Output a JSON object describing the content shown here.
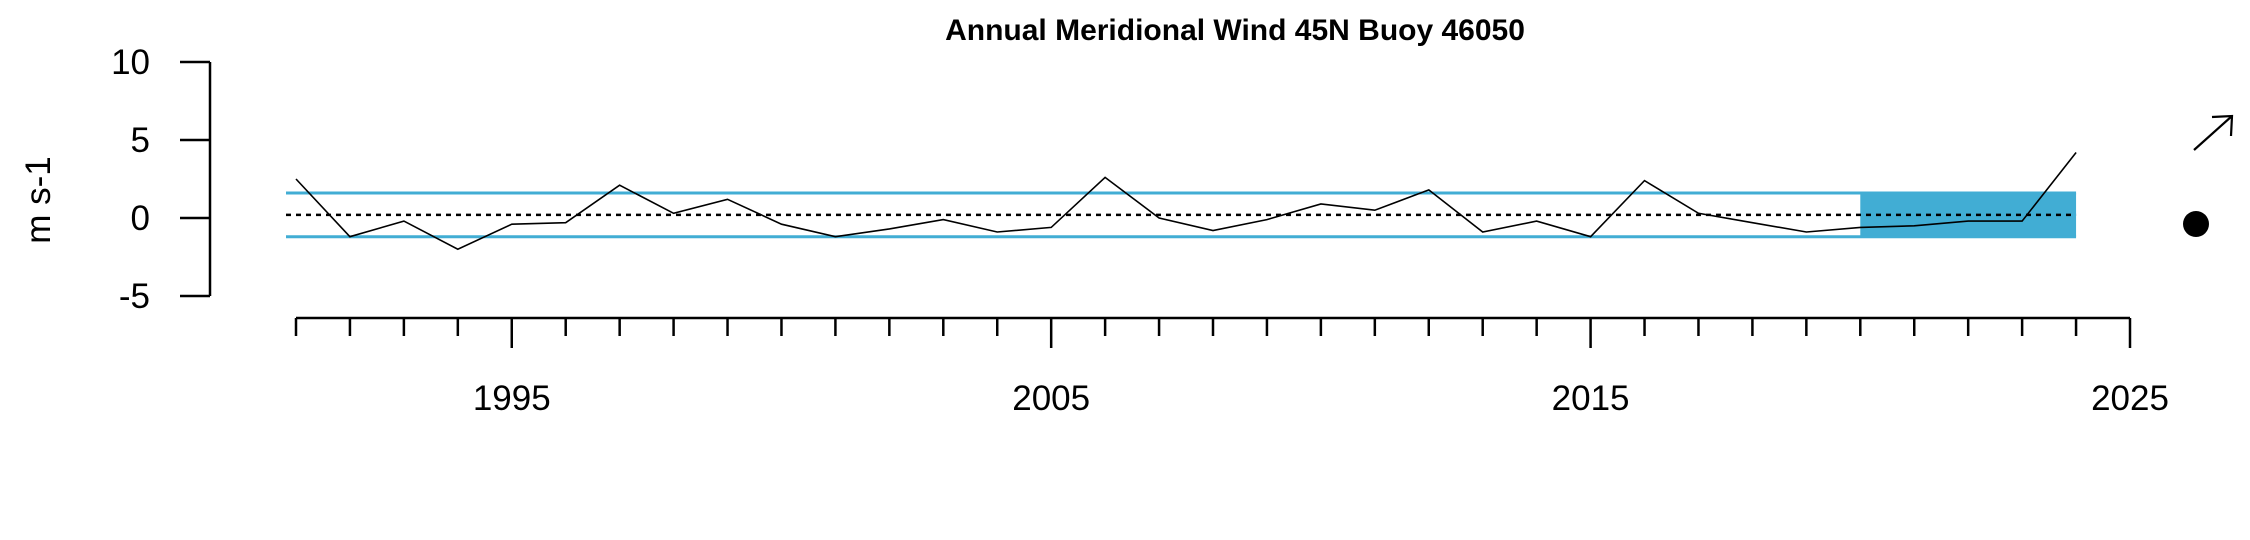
{
  "chart_data": {
    "type": "line",
    "title": "Annual Meridional Wind 45N Buoy 46050",
    "xlabel": "",
    "ylabel": "m s-1",
    "xlim": [
      1990.5,
      2025
    ],
    "ylim": [
      -5,
      10
    ],
    "x_ticks_major": [
      1995,
      2005,
      2015,
      2025
    ],
    "x_ticks_minor_step": 1,
    "y_ticks": [
      -5,
      0,
      5,
      10
    ],
    "x": [
      1991,
      1992,
      1993,
      1994,
      1995,
      1996,
      1997,
      1998,
      1999,
      2000,
      2001,
      2002,
      2003,
      2004,
      2005,
      2006,
      2007,
      2008,
      2009,
      2010,
      2011,
      2012,
      2013,
      2014,
      2015,
      2016,
      2017,
      2018,
      2019,
      2020,
      2021,
      2022,
      2023,
      2024
    ],
    "series": [
      {
        "values": [
          2.5,
          -1.2,
          -0.2,
          -2.0,
          -0.4,
          -0.3,
          2.1,
          0.3,
          1.2,
          -0.4,
          -1.2,
          -0.7,
          -0.1,
          -0.9,
          -0.6,
          2.6,
          0.0,
          -0.8,
          -0.1,
          0.9,
          0.5,
          1.8,
          -0.9,
          -0.2,
          -1.2,
          2.4,
          0.3,
          -0.3,
          -0.9,
          -0.6,
          -0.5,
          -0.2,
          -0.2,
          4.2
        ]
      }
    ],
    "mean": 0.2,
    "band_upper": 1.6,
    "band_lower": -1.2,
    "highlight_x_range": [
      2020,
      2024
    ],
    "grid": false,
    "colors": {
      "line": "#000000",
      "band": "#41ADD4",
      "mean": "#000000"
    },
    "trend_symbol": "arrow-up-right",
    "mean_symbol": "filled-circle"
  }
}
